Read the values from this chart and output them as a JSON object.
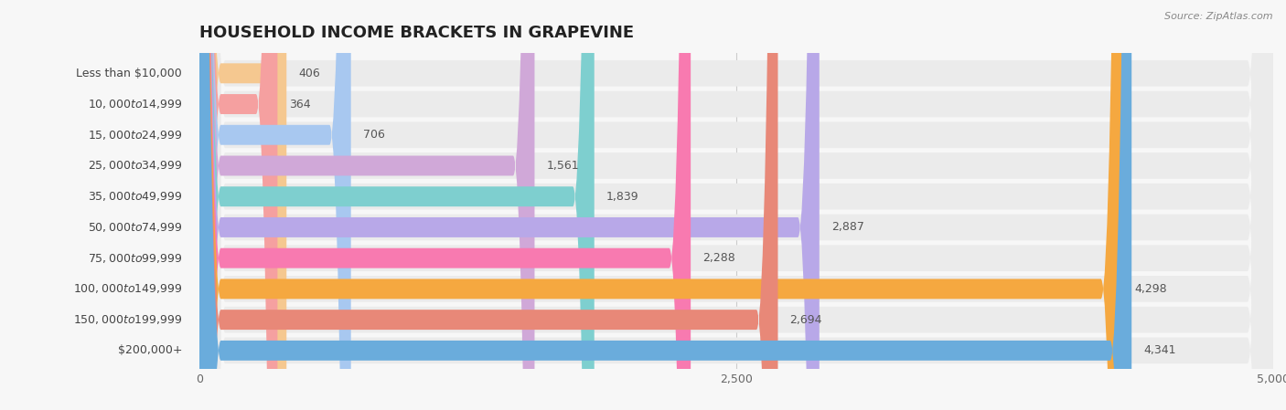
{
  "title": "HOUSEHOLD INCOME BRACKETS IN GRAPEVINE",
  "source": "Source: ZipAtlas.com",
  "categories": [
    "Less than $10,000",
    "$10,000 to $14,999",
    "$15,000 to $24,999",
    "$25,000 to $34,999",
    "$35,000 to $49,999",
    "$50,000 to $74,999",
    "$75,000 to $99,999",
    "$100,000 to $149,999",
    "$150,000 to $199,999",
    "$200,000+"
  ],
  "values": [
    406,
    364,
    706,
    1561,
    1839,
    2887,
    2288,
    4298,
    2694,
    4341
  ],
  "bar_colors": [
    "#f5c890",
    "#f5a0a0",
    "#a8c8f0",
    "#d0a8d8",
    "#7ecfcf",
    "#b8a8e8",
    "#f87ab0",
    "#f5a840",
    "#e88878",
    "#6aacdc"
  ],
  "xlim": [
    0,
    5000
  ],
  "xticks": [
    0,
    2500,
    5000
  ],
  "background_color": "#f7f7f7",
  "row_bg_color": "#ebebeb",
  "title_fontsize": 13,
  "label_fontsize": 9,
  "value_fontsize": 9
}
